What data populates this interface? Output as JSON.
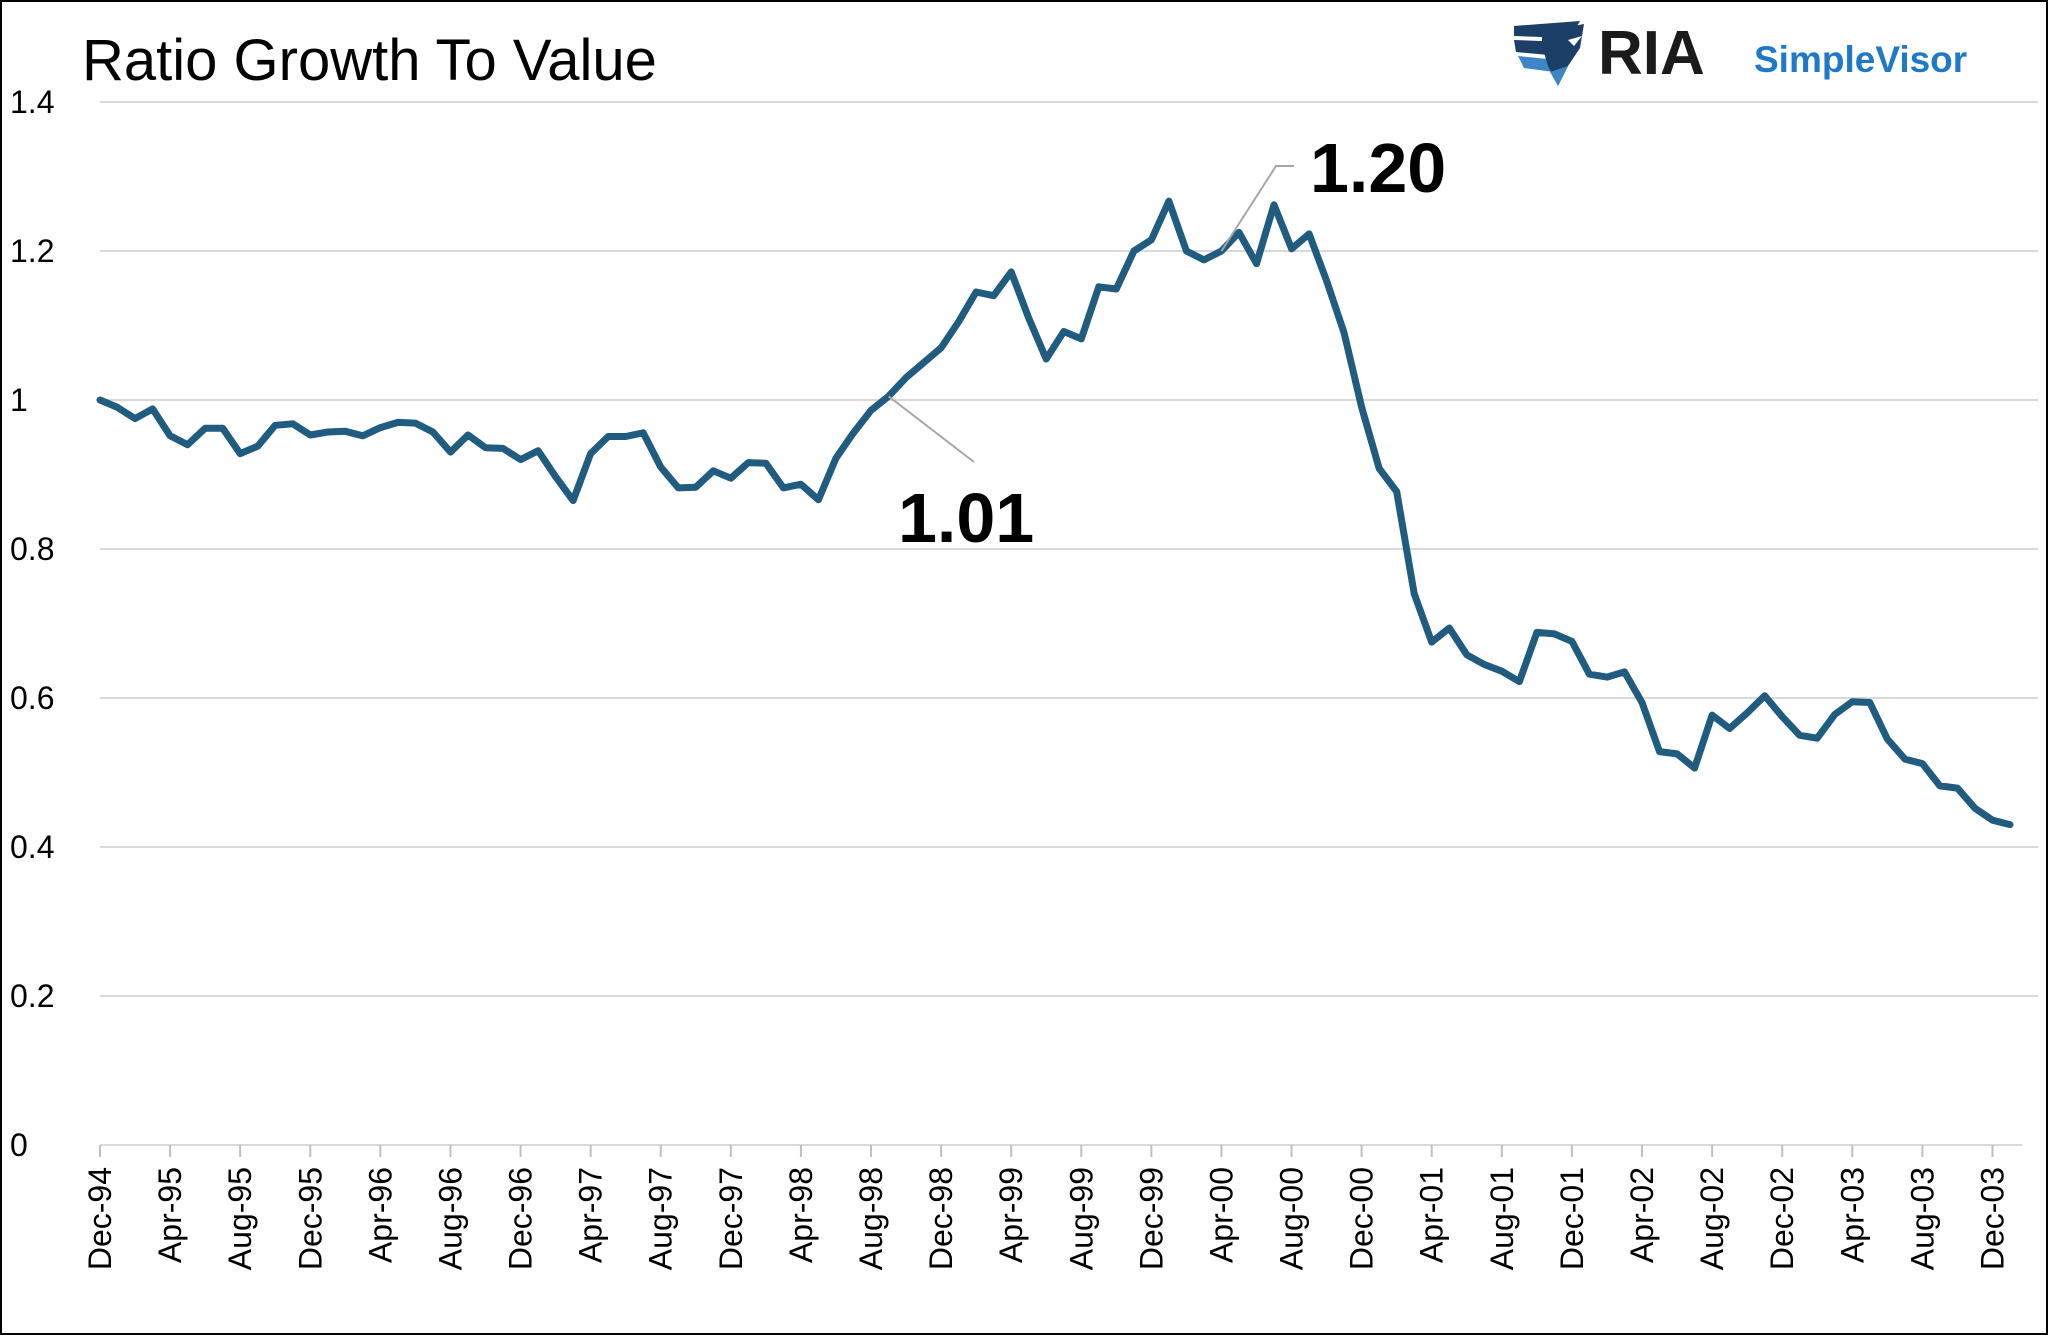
{
  "chart_data": {
    "type": "line",
    "title": "Ratio Growth To Value",
    "xlabel": "",
    "ylabel": "",
    "ylim": [
      0,
      1.4
    ],
    "yticks": [
      "0",
      "0.2",
      "0.4",
      "0.6",
      "0.8",
      "1",
      "1.2",
      "1.4"
    ],
    "grid": true,
    "legend": "none",
    "colors": {
      "line": "#1f5c80",
      "grid": "#d9d9d9",
      "leader": "#a6a6a6"
    },
    "x_tick_labels": [
      "Dec-94",
      "Apr-95",
      "Aug-95",
      "Dec-95",
      "Apr-96",
      "Aug-96",
      "Dec-96",
      "Apr-97",
      "Aug-97",
      "Dec-97",
      "Apr-98",
      "Aug-98",
      "Dec-98",
      "Apr-99",
      "Aug-99",
      "Dec-99",
      "Apr-00",
      "Aug-00",
      "Dec-00",
      "Apr-01",
      "Aug-01",
      "Dec-01",
      "Apr-02",
      "Aug-02",
      "Dec-02",
      "Apr-03",
      "Aug-03",
      "Dec-03"
    ],
    "series": [
      {
        "name": "Ratio Growth To Value",
        "values": [
          1.0,
          0.99,
          0.975,
          0.988,
          0.952,
          0.94,
          0.962,
          0.962,
          0.928,
          0.938,
          0.966,
          0.968,
          0.953,
          0.957,
          0.958,
          0.952,
          0.963,
          0.97,
          0.969,
          0.957,
          0.93,
          0.953,
          0.936,
          0.935,
          0.92,
          0.932,
          0.897,
          0.865,
          0.928,
          0.951,
          0.951,
          0.956,
          0.91,
          0.882,
          0.883,
          0.905,
          0.895,
          0.916,
          0.915,
          0.882,
          0.887,
          0.866,
          0.922,
          0.956,
          0.986,
          1.005,
          1.03,
          1.05,
          1.07,
          1.105,
          1.145,
          1.14,
          1.172,
          1.11,
          1.055,
          1.092,
          1.082,
          1.152,
          1.149,
          1.2,
          1.215,
          1.267,
          1.2,
          1.188,
          1.2,
          1.225,
          1.183,
          1.262,
          1.203,
          1.223,
          1.16,
          1.09,
          0.99,
          0.908,
          0.877,
          0.74,
          0.675,
          0.694,
          0.658,
          0.645,
          0.636,
          0.622,
          0.688,
          0.686,
          0.676,
          0.632,
          0.628,
          0.635,
          0.594,
          0.528,
          0.525,
          0.506,
          0.577,
          0.559,
          0.58,
          0.603,
          0.575,
          0.55,
          0.546,
          0.578,
          0.595,
          0.594,
          0.545,
          0.518,
          0.512,
          0.482,
          0.479,
          0.452,
          0.436,
          0.43
        ]
      }
    ],
    "annotations": [
      {
        "label": "1.01",
        "point_index": 45
      },
      {
        "label": "1.20",
        "point_index": 64
      }
    ]
  },
  "logo": {
    "brand": "RIA",
    "product": "SimpleVisor",
    "colors": {
      "brand_text": "#1b1b1b",
      "product_text": "#1f78c8",
      "emblem_dark": "#1b3f66",
      "emblem_light": "#3d86c6"
    }
  }
}
